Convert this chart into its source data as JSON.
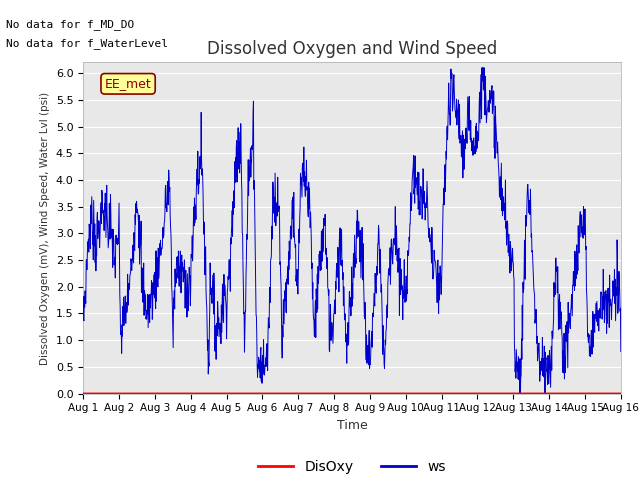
{
  "title": "Dissolved Oxygen and Wind Speed",
  "ylabel": "Dissolved Oxygen (mV), Wind Speed, Water Lvl (psi)",
  "xlabel": "Time",
  "text_no_data_1": "No data for f_MD_DO",
  "text_no_data_2": "No data for f_WaterLevel",
  "annotation_box": "EE_met",
  "ylim": [
    0.0,
    6.2
  ],
  "xlim": [
    0,
    15
  ],
  "xtick_labels": [
    "Aug 1",
    "Aug 2",
    "Aug 3",
    "Aug 4",
    "Aug 5",
    "Aug 6",
    "Aug 7",
    "Aug 8",
    "Aug 9",
    "Aug 10",
    "Aug 11",
    "Aug 12",
    "Aug 13",
    "Aug 14",
    "Aug 15",
    "Aug 16"
  ],
  "xtick_positions": [
    0,
    1,
    2,
    3,
    4,
    5,
    6,
    7,
    8,
    9,
    10,
    11,
    12,
    13,
    14,
    15
  ],
  "ytick_positions": [
    0.0,
    0.5,
    1.0,
    1.5,
    2.0,
    2.5,
    3.0,
    3.5,
    4.0,
    4.5,
    5.0,
    5.5,
    6.0
  ],
  "ws_color": "#0000cc",
  "disoxy_color": "#ff0000",
  "plot_bg_color": "#e8e8e8",
  "legend_disoxy_label": "DisOxy",
  "legend_ws_label": "ws",
  "ctrl_t": [
    0,
    0.08,
    0.15,
    0.25,
    0.35,
    0.5,
    0.65,
    0.8,
    0.9,
    1.0,
    1.05,
    1.15,
    1.3,
    1.5,
    1.65,
    1.8,
    1.9,
    2.0,
    2.1,
    2.2,
    2.4,
    2.5,
    2.6,
    2.75,
    2.9,
    3.0,
    3.05,
    3.15,
    3.3,
    3.5,
    3.55,
    3.7,
    3.85,
    3.95,
    4.0,
    4.1,
    4.25,
    4.4,
    4.5,
    4.6,
    4.75,
    4.85,
    4.95,
    5.0,
    5.05,
    5.15,
    5.3,
    5.45,
    5.55,
    5.7,
    5.85,
    5.95,
    6.0,
    6.05,
    6.15,
    6.3,
    6.45,
    6.6,
    6.75,
    6.85,
    6.95,
    7.0,
    7.05,
    7.2,
    7.35,
    7.5,
    7.65,
    7.8,
    7.9,
    8.0,
    8.1,
    8.25,
    8.4,
    8.55,
    8.7,
    8.85,
    8.95,
    9.0,
    9.05,
    9.2,
    9.4,
    9.6,
    9.75,
    9.9,
    10.0,
    10.05,
    10.15,
    10.3,
    10.5,
    10.6,
    10.75,
    10.9,
    11.0,
    11.05,
    11.15,
    11.3,
    11.5,
    11.6,
    11.75,
    11.9,
    12.0,
    12.05,
    12.2,
    12.4,
    12.5,
    12.6,
    12.75,
    12.9,
    13.0,
    13.05,
    13.2,
    13.4,
    13.6,
    13.75,
    13.9,
    14.0,
    14.1,
    14.3,
    14.5,
    14.65,
    14.8,
    14.9,
    15.0
  ],
  "ctrl_v": [
    1.4,
    2.2,
    3.0,
    3.2,
    2.8,
    3.3,
    3.5,
    2.9,
    2.5,
    3.0,
    1.0,
    1.5,
    2.0,
    3.7,
    2.0,
    1.5,
    1.8,
    2.0,
    2.5,
    2.8,
    4.1,
    1.2,
    2.5,
    2.3,
    2.0,
    2.3,
    2.7,
    3.7,
    4.6,
    0.5,
    2.3,
    1.2,
    1.5,
    1.8,
    1.8,
    2.5,
    4.25,
    5.0,
    0.8,
    3.8,
    5.0,
    0.5,
    0.6,
    0.4,
    0.5,
    0.8,
    3.8,
    3.6,
    1.2,
    2.2,
    3.5,
    2.0,
    2.0,
    3.6,
    4.0,
    3.8,
    1.0,
    2.5,
    3.2,
    1.5,
    1.2,
    1.5,
    2.2,
    3.0,
    0.6,
    2.1,
    3.2,
    2.5,
    0.7,
    0.8,
    1.5,
    3.0,
    0.6,
    2.5,
    3.0,
    2.0,
    1.8,
    1.8,
    2.5,
    4.1,
    3.7,
    3.5,
    2.4,
    2.0,
    2.0,
    3.5,
    4.9,
    5.7,
    5.0,
    4.5,
    5.0,
    4.8,
    4.9,
    5.3,
    6.0,
    5.5,
    5.2,
    4.0,
    3.5,
    2.5,
    2.5,
    0.8,
    0.3,
    3.9,
    3.2,
    1.5,
    0.5,
    0.4,
    0.3,
    0.5,
    2.5,
    0.6,
    1.5,
    2.5,
    3.2,
    3.2,
    0.8,
    1.5,
    1.8,
    1.5,
    1.8,
    1.9,
    1.8
  ],
  "noise_std": 0.25,
  "seed": 7
}
